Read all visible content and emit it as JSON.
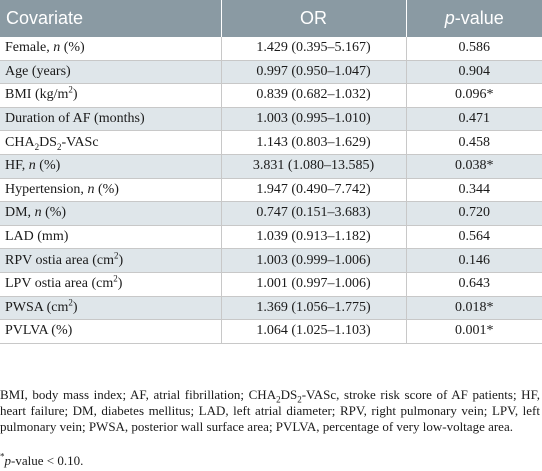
{
  "header": {
    "covariate": "Covariate",
    "or": "OR",
    "p_italic": "p",
    "p_rest": "-value"
  },
  "rows": [
    {
      "pre": "Female, ",
      "italic": "n",
      "post": " (%)",
      "or": "1.429 (0.395–5.167)",
      "p": "0.586"
    },
    {
      "pre": "Age (years)",
      "or": "0.997 (0.950–1.047)",
      "p": "0.904"
    },
    {
      "pre": "BMI (kg/m",
      "sup": "2",
      "post": ")",
      "or": "0.839 (0.682–1.032)",
      "p": "0.096*"
    },
    {
      "pre": "Duration of AF (months)",
      "or": "1.003 (0.995–1.010)",
      "p": "0.471"
    },
    {
      "pre": "CHA",
      "sub": "2",
      "mid": "DS",
      "sub2": "2",
      "post": "-VASc",
      "or": "1.143 (0.803–1.629)",
      "p": "0.458"
    },
    {
      "pre": "HF, ",
      "italic": "n",
      "post": " (%)",
      "or": "3.831 (1.080–13.585)",
      "p": "0.038*"
    },
    {
      "pre": "Hypertension, ",
      "italic": "n",
      "post": " (%)",
      "or": "1.947 (0.490–7.742)",
      "p": "0.344"
    },
    {
      "pre": "DM, ",
      "italic": "n",
      "post": " (%)",
      "or": "0.747 (0.151–3.683)",
      "p": "0.720"
    },
    {
      "pre": "LAD (mm)",
      "or": "1.039 (0.913–1.182)",
      "p": "0.564"
    },
    {
      "pre": "RPV ostia area (cm",
      "sup": "2",
      "post": ")",
      "or": "1.003 (0.999–1.006)",
      "p": "0.146"
    },
    {
      "pre": "LPV ostia area (cm",
      "sup": "2",
      "post": ")",
      "or": "1.001 (0.997–1.006)",
      "p": "0.643"
    },
    {
      "pre": "PWSA (cm",
      "sup": "2",
      "post": ")",
      "or": "1.369 (1.056–1.775)",
      "p": "0.018*"
    },
    {
      "pre": "PVLVA (%)",
      "or": "1.064 (1.025–1.103)",
      "p": "0.001*"
    }
  ],
  "footnote": {
    "a": "BMI, body mass index; AF, atrial fibrillation; CHA",
    "a_sub1": "2",
    "b": "DS",
    "b_sub2": "2",
    "c": "-VASc, stroke risk score of AF patients; HF, heart failure; DM, diabetes mellitus; LAD, left atrial diameter; RPV, right pulmonary vein; LPV, left pulmonary vein; PWSA, posterior wall surface area; PVLVA, percentage of very low-voltage area.",
    "star": "*",
    "p_italic": "p",
    "p_rest": "-value < 0.10."
  }
}
